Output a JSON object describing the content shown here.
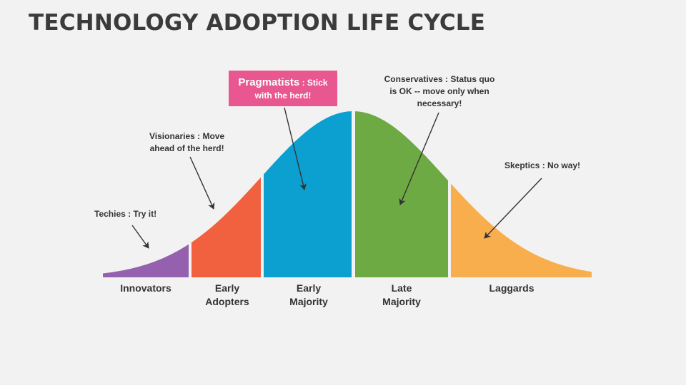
{
  "title": "TECHNOLOGY ADOPTION LIFE CYCLE",
  "segments": [
    {
      "label": "Innovators",
      "color": "#9560ad"
    },
    {
      "label": "Early\nAdopters",
      "color": "#f1603f"
    },
    {
      "label": "Early\nMajority",
      "color": "#0ba0cf"
    },
    {
      "label": "Late\nMajority",
      "color": "#6daa43"
    },
    {
      "label": "Laggards",
      "color": "#f9ae4d"
    }
  ],
  "notes": {
    "techies": "Techies : Try it!",
    "visionaries_line1": "Visionaries : Move",
    "visionaries_line2": "ahead of the herd!",
    "pragmatists_name": "Pragmatists",
    "pragmatists_sep": " : ",
    "pragmatists_rest": "Stick",
    "pragmatists_line2": "with the herd!",
    "conservatives_line1": "Conservatives : Status quo",
    "conservatives_line2": "is OK -- move only when",
    "conservatives_line3": "necessary!",
    "skeptics": "Skeptics : No way!"
  },
  "highlight_color": "#e8578f"
}
